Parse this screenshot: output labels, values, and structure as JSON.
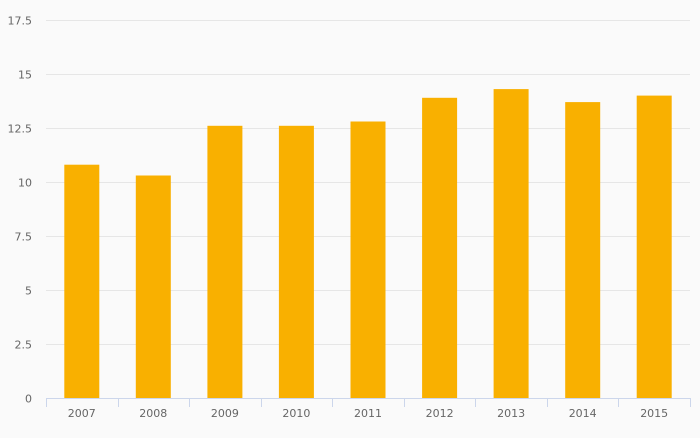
{
  "chart_data": {
    "type": "bar",
    "title": "",
    "xlabel": "",
    "ylabel": "",
    "categories": [
      "2007",
      "2008",
      "2009",
      "2010",
      "2011",
      "2012",
      "2013",
      "2014",
      "2015"
    ],
    "series": [
      {
        "values": [
          10.8,
          10.3,
          12.6,
          12.6,
          12.8,
          13.9,
          14.3,
          13.7,
          14.0
        ]
      }
    ],
    "ylim": [
      0,
      17.5
    ],
    "yticks": [
      0,
      2.5,
      5,
      7.5,
      10,
      12.5,
      15,
      17.5
    ],
    "ytick_labels": [
      "0",
      "2.5",
      "5",
      "7.5",
      "10",
      "12.5",
      "15",
      "17.5"
    ],
    "grid": true,
    "legend": "none",
    "colors": {
      "bar": "#f9b000",
      "grid": "#e6e6e6",
      "axis": "#ccd6eb",
      "text": "#666666",
      "background": "#fafafa"
    }
  }
}
